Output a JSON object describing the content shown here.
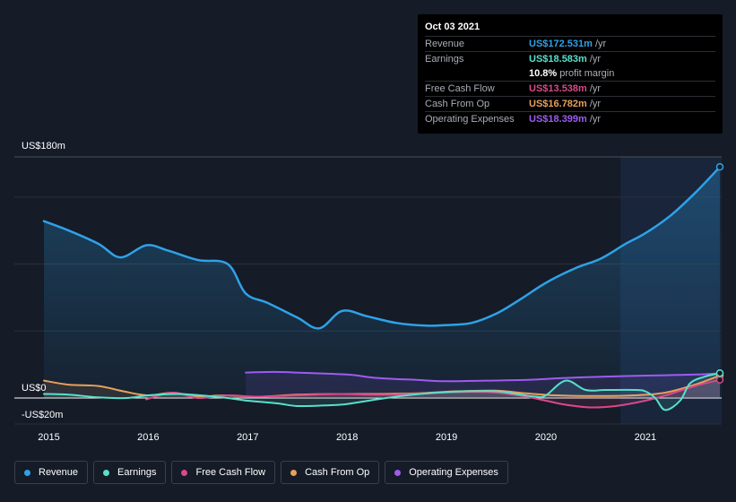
{
  "chart_data": {
    "type": "line",
    "y_axis": {
      "top_label": "US$180m",
      "zero_label": "US$0",
      "bottom_label": "-US$20m",
      "ylim": [
        -20,
        180
      ]
    },
    "x_axis": {
      "ticks": [
        "2015",
        "2016",
        "2017",
        "2018",
        "2019",
        "2020",
        "2021"
      ],
      "xlim": [
        2014.95,
        2021.75
      ]
    },
    "forecast_region_start": 2020.75,
    "series": [
      {
        "name": "Revenue",
        "color": "#2ea2e8",
        "points": [
          [
            2014.95,
            132
          ],
          [
            2015.2,
            125
          ],
          [
            2015.5,
            115
          ],
          [
            2015.72,
            105
          ],
          [
            2015.98,
            114
          ],
          [
            2016.2,
            110
          ],
          [
            2016.5,
            103
          ],
          [
            2016.8,
            100
          ],
          [
            2016.98,
            78
          ],
          [
            2017.2,
            71
          ],
          [
            2017.5,
            60
          ],
          [
            2017.72,
            52
          ],
          [
            2017.95,
            65
          ],
          [
            2018.2,
            61
          ],
          [
            2018.5,
            56
          ],
          [
            2018.8,
            54
          ],
          [
            2019.0,
            54.5
          ],
          [
            2019.25,
            56
          ],
          [
            2019.5,
            63
          ],
          [
            2019.75,
            74
          ],
          [
            2020.0,
            86
          ],
          [
            2020.3,
            97
          ],
          [
            2020.55,
            104
          ],
          [
            2020.8,
            115
          ],
          [
            2021.0,
            123
          ],
          [
            2021.25,
            136
          ],
          [
            2021.5,
            153
          ],
          [
            2021.75,
            172.531
          ]
        ]
      },
      {
        "name": "Earnings",
        "color": "#58e0cb",
        "points": [
          [
            2014.95,
            3
          ],
          [
            2015.2,
            2.5
          ],
          [
            2015.5,
            0.5
          ],
          [
            2015.78,
            0
          ],
          [
            2016.0,
            2
          ],
          [
            2016.3,
            3
          ],
          [
            2016.6,
            1.5
          ],
          [
            2016.8,
            0
          ],
          [
            2017.0,
            -2
          ],
          [
            2017.3,
            -4
          ],
          [
            2017.5,
            -6
          ],
          [
            2017.8,
            -5.5
          ],
          [
            2018.0,
            -4.5
          ],
          [
            2018.3,
            -1
          ],
          [
            2018.6,
            2
          ],
          [
            2018.9,
            4
          ],
          [
            2019.2,
            5
          ],
          [
            2019.5,
            5
          ],
          [
            2019.7,
            3
          ],
          [
            2019.9,
            1
          ],
          [
            2020.0,
            2
          ],
          [
            2020.2,
            13
          ],
          [
            2020.4,
            6
          ],
          [
            2020.6,
            6
          ],
          [
            2020.9,
            6
          ],
          [
            2021.0,
            5
          ],
          [
            2021.1,
            0
          ],
          [
            2021.2,
            -9
          ],
          [
            2021.35,
            -2
          ],
          [
            2021.45,
            11
          ],
          [
            2021.6,
            16
          ],
          [
            2021.75,
            18.583
          ]
        ]
      },
      {
        "name": "Free Cash Flow",
        "color": "#d8498a",
        "points": [
          [
            2015.98,
            -1
          ],
          [
            2016.25,
            4
          ],
          [
            2016.5,
            0
          ],
          [
            2016.8,
            2
          ],
          [
            2017.1,
            1
          ],
          [
            2017.5,
            2
          ],
          [
            2017.9,
            3
          ],
          [
            2018.2,
            2.5
          ],
          [
            2018.5,
            2.5
          ],
          [
            2018.8,
            3.5
          ],
          [
            2019.2,
            4.5
          ],
          [
            2019.5,
            4
          ],
          [
            2019.8,
            1
          ],
          [
            2020.0,
            -2
          ],
          [
            2020.2,
            -5
          ],
          [
            2020.45,
            -7
          ],
          [
            2020.7,
            -6
          ],
          [
            2021.0,
            -2
          ],
          [
            2021.25,
            3
          ],
          [
            2021.5,
            9
          ],
          [
            2021.75,
            13.538
          ]
        ]
      },
      {
        "name": "Cash From Op",
        "color": "#e8a05a",
        "points": [
          [
            2014.95,
            13
          ],
          [
            2015.2,
            10
          ],
          [
            2015.5,
            9
          ],
          [
            2015.75,
            5
          ],
          [
            2016.0,
            2
          ],
          [
            2016.25,
            4
          ],
          [
            2016.5,
            1
          ],
          [
            2016.75,
            2
          ],
          [
            2017.1,
            1
          ],
          [
            2017.5,
            2.5
          ],
          [
            2017.9,
            3
          ],
          [
            2018.3,
            3
          ],
          [
            2018.7,
            3.5
          ],
          [
            2019.1,
            5
          ],
          [
            2019.5,
            5.5
          ],
          [
            2019.8,
            3.5
          ],
          [
            2020.1,
            2
          ],
          [
            2020.5,
            1.5
          ],
          [
            2020.9,
            2
          ],
          [
            2021.2,
            4
          ],
          [
            2021.5,
            10
          ],
          [
            2021.75,
            16.782
          ]
        ]
      },
      {
        "name": "Operating Expenses",
        "color": "#9d5cf0",
        "points": [
          [
            2016.98,
            19
          ],
          [
            2017.25,
            19.5
          ],
          [
            2017.5,
            19
          ],
          [
            2018.0,
            17.5
          ],
          [
            2018.3,
            15
          ],
          [
            2018.7,
            13.5
          ],
          [
            2019.0,
            12.5
          ],
          [
            2019.4,
            13
          ],
          [
            2019.8,
            13.5
          ],
          [
            2020.2,
            15
          ],
          [
            2020.6,
            16
          ],
          [
            2020.9,
            16.5
          ],
          [
            2021.2,
            17
          ],
          [
            2021.5,
            17.5
          ],
          [
            2021.75,
            18.399
          ]
        ]
      }
    ]
  },
  "tooltip": {
    "date": "Oct 03 2021",
    "rows": [
      {
        "label": "Revenue",
        "value": "US$172.531m",
        "unit": "/yr",
        "color": "#2ea2e8"
      },
      {
        "label": "Earnings",
        "value": "US$18.583m",
        "unit": "/yr",
        "color": "#58e0cb"
      },
      {
        "label": "",
        "value": "10.8%",
        "unit": "profit margin",
        "color": "#ffffff"
      },
      {
        "label": "Free Cash Flow",
        "value": "US$13.538m",
        "unit": "/yr",
        "color": "#d8498a"
      },
      {
        "label": "Cash From Op",
        "value": "US$16.782m",
        "unit": "/yr",
        "color": "#e8a05a"
      },
      {
        "label": "Operating Expenses",
        "value": "US$18.399m",
        "unit": "/yr",
        "color": "#9d5cf0"
      }
    ]
  },
  "legend": [
    {
      "label": "Revenue",
      "color": "#2ea2e8"
    },
    {
      "label": "Earnings",
      "color": "#58e0cb"
    },
    {
      "label": "Free Cash Flow",
      "color": "#d8498a"
    },
    {
      "label": "Cash From Op",
      "color": "#e8a05a"
    },
    {
      "label": "Operating Expenses",
      "color": "#9d5cf0"
    }
  ]
}
